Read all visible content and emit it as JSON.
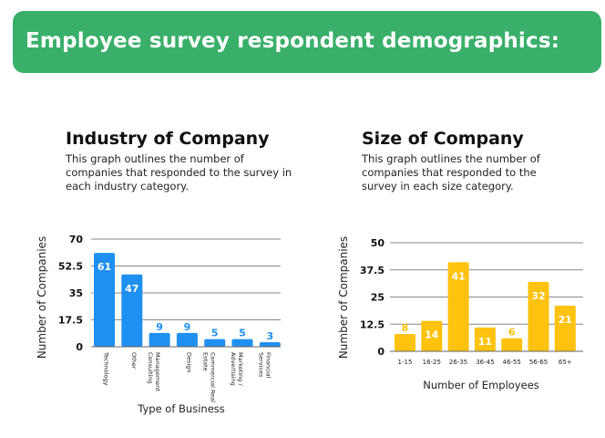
{
  "header": {
    "title": "Employee survey respondent demographics:"
  },
  "colors": {
    "banner": "#3aaf6a",
    "industry_bar": "#1e90f0",
    "size_bar": "#ffc20e",
    "grid": "#888888"
  },
  "industry": {
    "heading": "Industry of Company",
    "description": "This graph outlines the number of companies that responded to the survey in each industry category."
  },
  "size": {
    "heading": "Size of Company",
    "description": "This graph outlines the number of companies that responded to the survey in each size category."
  },
  "chart_data": [
    {
      "type": "bar",
      "categories": [
        "Technology",
        "Other",
        "Management Consulting",
        "Design",
        "Commercial Real Estate",
        "Marketing / Advertising",
        "Financial Services"
      ],
      "values": [
        61,
        47,
        9,
        9,
        5,
        5,
        3
      ],
      "yticks": [
        "0",
        "17.5",
        "35",
        "52.5",
        "70"
      ],
      "ylim": [
        0,
        70
      ],
      "xlabel": "Type of Business",
      "ylabel": "Number of Companies",
      "grid": true
    },
    {
      "type": "bar",
      "categories": [
        "1-15",
        "16-25",
        "26-35",
        "36-45",
        "46-55",
        "56-65",
        "65+"
      ],
      "values": [
        8,
        14,
        41,
        11,
        6,
        32,
        21
      ],
      "yticks": [
        "0",
        "12.5",
        "25",
        "37.5",
        "50"
      ],
      "ylim": [
        0,
        50
      ],
      "xlabel": "Number of Employees",
      "ylabel": "Number of Companies",
      "grid": true
    }
  ]
}
